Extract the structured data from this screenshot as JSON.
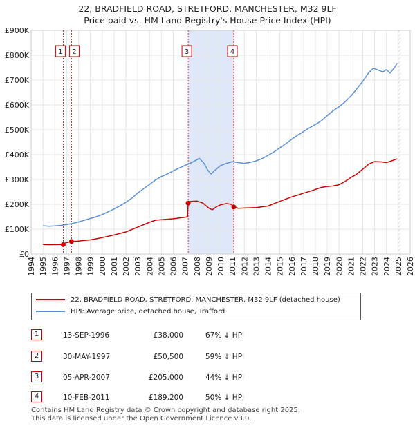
{
  "title": {
    "line1": "22, BRADFIELD ROAD, STRETFORD, MANCHESTER, M32 9LF",
    "line2": "Price paid vs. HM Land Registry's House Price Index (HPI)"
  },
  "colors": {
    "property": "#cc0000",
    "hpi": "#5b8fd6",
    "highlight": "#dfe8f8",
    "marker_border": "#cc0000"
  },
  "chart_data": {
    "type": "line",
    "title": "22, BRADFIELD ROAD, STRETFORD, MANCHESTER, M32 9LF — Price paid vs. HM Land Registry's House Price Index (HPI)",
    "xlim": [
      1994,
      2026
    ],
    "ylim": [
      0,
      900000
    ],
    "x_ticks": [
      "1994",
      "1995",
      "1996",
      "1997",
      "1998",
      "1999",
      "2000",
      "2001",
      "2002",
      "2003",
      "2004",
      "2005",
      "2006",
      "2007",
      "2008",
      "2009",
      "2010",
      "2011",
      "2012",
      "2013",
      "2014",
      "2015",
      "2016",
      "2017",
      "2018",
      "2019",
      "2020",
      "2021",
      "2022",
      "2023",
      "2024",
      "2025",
      "2026"
    ],
    "y_ticks": [
      {
        "value": 0,
        "label": "£0"
      },
      {
        "value": 100000,
        "label": "£100K"
      },
      {
        "value": 200000,
        "label": "£200K"
      },
      {
        "value": 300000,
        "label": "£300K"
      },
      {
        "value": 400000,
        "label": "£400K"
      },
      {
        "value": 500000,
        "label": "£500K"
      },
      {
        "value": 600000,
        "label": "£600K"
      },
      {
        "value": 700000,
        "label": "£700K"
      },
      {
        "value": 800000,
        "label": "£800K"
      },
      {
        "value": 900000,
        "label": "£900K"
      }
    ],
    "highlight_span": [
      2007.26,
      2011.11
    ],
    "series": [
      {
        "name": "22, BRADFIELD ROAD, STRETFORD, MANCHESTER, M32 9LF (detached house)",
        "x": [
          1995.0,
          1995.5,
          1996.0,
          1996.5,
          1996.71,
          1996.9,
          1997.2,
          1997.41,
          1997.7,
          1998.0,
          1998.5,
          1999.0,
          1999.5,
          2000.0,
          2000.5,
          2001.0,
          2001.5,
          2002.0,
          2002.5,
          2003.0,
          2003.5,
          2004.0,
          2004.5,
          2005.0,
          2005.5,
          2006.0,
          2006.5,
          2007.0,
          2007.2,
          2007.26,
          2007.5,
          2008.0,
          2008.5,
          2009.0,
          2009.3,
          2009.7,
          2010.0,
          2010.5,
          2010.9,
          2011.11,
          2011.5,
          2012.0,
          2012.5,
          2013.0,
          2013.5,
          2014.0,
          2014.5,
          2015.0,
          2015.5,
          2016.0,
          2016.5,
          2017.0,
          2017.5,
          2018.0,
          2018.5,
          2019.0,
          2019.5,
          2020.0,
          2020.5,
          2021.0,
          2021.5,
          2022.0,
          2022.5,
          2023.0,
          2023.5,
          2024.0,
          2024.5,
          2024.9
        ],
        "values": [
          38000,
          37500,
          37800,
          38000,
          38000,
          45000,
          48000,
          50500,
          51000,
          52000,
          55000,
          57000,
          61000,
          66000,
          71000,
          77000,
          83000,
          89000,
          99000,
          108000,
          118000,
          128000,
          136000,
          138000,
          140000,
          142000,
          145000,
          148000,
          150000,
          205000,
          212000,
          213000,
          205000,
          185000,
          178000,
          192000,
          198000,
          203000,
          200000,
          189200,
          184000,
          185000,
          186000,
          187000,
          190000,
          193000,
          203000,
          212000,
          221000,
          230000,
          237000,
          245000,
          252000,
          260000,
          268000,
          272000,
          274000,
          279000,
          292000,
          308000,
          322000,
          342000,
          362000,
          372000,
          371000,
          368000,
          376000,
          383000
        ]
      },
      {
        "name": "HPI: Average price, detached house, Trafford",
        "x": [
          1995.0,
          1995.5,
          1996.0,
          1996.5,
          1997.0,
          1997.5,
          1998.0,
          1998.5,
          1999.0,
          1999.5,
          2000.0,
          2000.5,
          2001.0,
          2001.5,
          2002.0,
          2002.5,
          2003.0,
          2003.5,
          2004.0,
          2004.5,
          2005.0,
          2005.5,
          2006.0,
          2006.5,
          2007.0,
          2007.5,
          2007.9,
          2008.2,
          2008.6,
          2008.9,
          2009.2,
          2009.5,
          2010.0,
          2010.5,
          2011.0,
          2011.5,
          2012.0,
          2012.5,
          2013.0,
          2013.5,
          2014.0,
          2014.5,
          2015.0,
          2015.5,
          2016.0,
          2016.5,
          2017.0,
          2017.5,
          2018.0,
          2018.5,
          2019.0,
          2019.5,
          2020.0,
          2020.5,
          2021.0,
          2021.5,
          2022.0,
          2022.5,
          2022.9,
          2023.3,
          2023.7,
          2024.0,
          2024.3,
          2024.7,
          2024.9
        ],
        "values": [
          114000,
          112000,
          113000,
          115000,
          119000,
          123000,
          129000,
          136000,
          143000,
          150000,
          159000,
          170000,
          181000,
          194000,
          208000,
          225000,
          245000,
          263000,
          280000,
          298000,
          312000,
          322000,
          335000,
          346000,
          357000,
          367000,
          377000,
          385000,
          365000,
          338000,
          322000,
          336000,
          356000,
          365000,
          372000,
          368000,
          365000,
          369000,
          375000,
          384000,
          397000,
          411000,
          427000,
          444000,
          462000,
          478000,
          493000,
          508000,
          521000,
          536000,
          557000,
          577000,
          593000,
          612000,
          636000,
          665000,
          695000,
          730000,
          748000,
          740000,
          733000,
          742000,
          728000,
          752000,
          768000
        ]
      }
    ],
    "sales": [
      {
        "id": "1",
        "x": 1996.71,
        "value": 38000
      },
      {
        "id": "2",
        "x": 1997.41,
        "value": 50500
      },
      {
        "id": "3",
        "x": 2007.26,
        "value": 205000
      },
      {
        "id": "4",
        "x": 2011.11,
        "value": 189200
      }
    ]
  },
  "legend": {
    "property_label": "22, BRADFIELD ROAD, STRETFORD, MANCHESTER, M32 9LF (detached house)",
    "hpi_label": "HPI: Average price, detached house, Trafford"
  },
  "transactions": [
    {
      "id": "1",
      "date": "13-SEP-1996",
      "price": "£38,000",
      "hpi": "67% ↓ HPI"
    },
    {
      "id": "2",
      "date": "30-MAY-1997",
      "price": "£50,500",
      "hpi": "59% ↓ HPI"
    },
    {
      "id": "3",
      "date": "05-APR-2007",
      "price": "£205,000",
      "hpi": "44% ↓ HPI"
    },
    {
      "id": "4",
      "date": "10-FEB-2011",
      "price": "£189,200",
      "hpi": "50% ↓ HPI"
    }
  ],
  "footer": {
    "line1": "Contains HM Land Registry data © Crown copyright and database right 2025.",
    "line2": "This data is licensed under the Open Government Licence v3.0."
  }
}
